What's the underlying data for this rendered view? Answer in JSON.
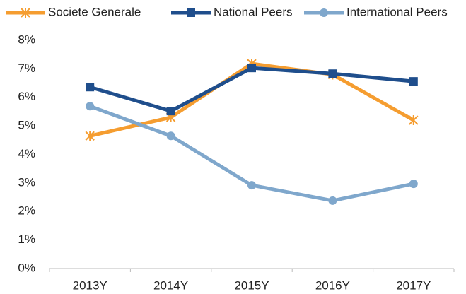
{
  "chart_data": {
    "type": "line",
    "categories": [
      "2013Y",
      "2014Y",
      "2015Y",
      "2016Y",
      "2017Y"
    ],
    "series": [
      {
        "name": "Societe Generale",
        "color": "#f59d30",
        "marker": "star",
        "values": [
          4.65,
          5.3,
          7.18,
          6.8,
          5.2
        ]
      },
      {
        "name": "National Peers",
        "color": "#1f4e8c",
        "marker": "square",
        "values": [
          6.36,
          5.52,
          7.03,
          6.83,
          6.56
        ]
      },
      {
        "name": "International Peers",
        "color": "#7fa7cc",
        "marker": "circle",
        "values": [
          5.69,
          4.65,
          2.92,
          2.38,
          2.97
        ]
      }
    ],
    "ylim": [
      0,
      8
    ],
    "yticks": [
      {
        "value": 0,
        "label": "0%"
      },
      {
        "value": 1,
        "label": "1%"
      },
      {
        "value": 2,
        "label": "2%"
      },
      {
        "value": 3,
        "label": "3%"
      },
      {
        "value": 4,
        "label": "4%"
      },
      {
        "value": 5,
        "label": "5%"
      },
      {
        "value": 6,
        "label": "6%"
      },
      {
        "value": 7,
        "label": "7%"
      },
      {
        "value": 8,
        "label": "8%"
      }
    ],
    "grid": false,
    "legend": "top"
  }
}
